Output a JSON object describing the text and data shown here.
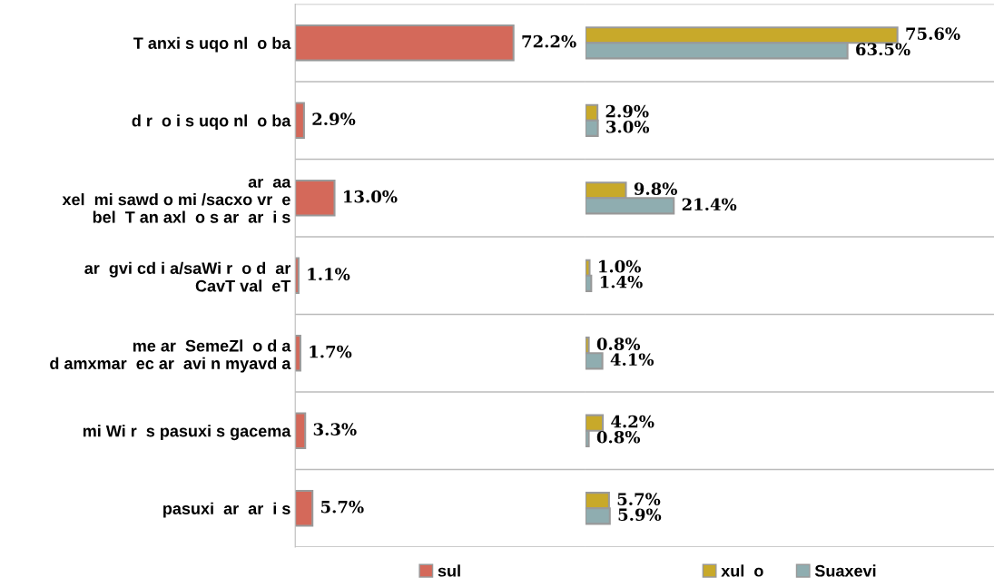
{
  "chart_data": [
    {
      "type": "bar",
      "orientation": "horizontal",
      "categories": [
        "T anxi s uqo nl  o ba",
        "d r  o i s uqo nl  o ba",
        "ar  aa\nxel  mi sawd o mi /sacxo vr  e\nbel  T an axl  o s ar  ar  i s",
        "ar  gvi cd i a/saWi r  o d  ar\nCavT val  eT",
        "me ar  SemeZl  o d a\nd amxmar  ec ar  avi n myavd a",
        "mi Wi r  s pasuxi s gacema",
        "pasuxi  ar  ar  i s"
      ],
      "series": [
        {
          "name": "sul",
          "color": "#d4695a",
          "values": [
            72.2,
            2.9,
            13.0,
            1.1,
            1.7,
            3.3,
            5.7
          ],
          "value_labels": [
            "72.2%",
            "2.9%",
            "13.0%",
            "1.1%",
            "1.7%",
            "3.3%",
            "5.7%"
          ]
        }
      ],
      "xlim": [
        0,
        96
      ],
      "grid": "y",
      "legend": "bottom",
      "tick_labels": "y"
    },
    {
      "type": "bar",
      "orientation": "horizontal",
      "categories": [
        null,
        null,
        null,
        null,
        null,
        null,
        null
      ],
      "series": [
        {
          "name": "xul  o",
          "color": "#c8a92a",
          "values": [
            75.6,
            2.9,
            9.8,
            1.0,
            0.8,
            4.2,
            5.7
          ],
          "value_labels": [
            "75.6%",
            "2.9%",
            "9.8%",
            "1.0%",
            "0.8%",
            "4.2%",
            "5.7%"
          ]
        },
        {
          "name": "Suaxevi",
          "color": "#8fadb0",
          "values": [
            63.5,
            3.0,
            21.4,
            1.4,
            4.1,
            0.8,
            5.9
          ],
          "value_labels": [
            "63.5%",
            "3.0%",
            "21.4%",
            "1.4%",
            "4.1%",
            "0.8%",
            "5.9%"
          ]
        }
      ],
      "xlim": [
        0,
        99
      ],
      "grid": "y",
      "legend": "bottom",
      "tick_labels": false
    }
  ]
}
